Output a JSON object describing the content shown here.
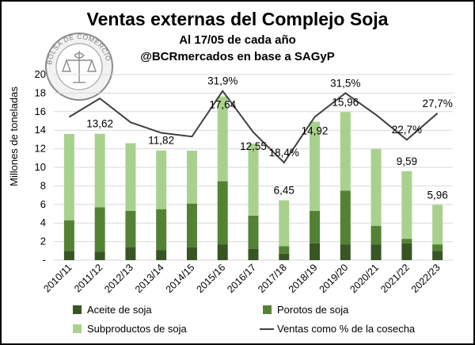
{
  "chart_data": {
    "type": "bar",
    "stacked": true,
    "title": "Ventas externas del Complejo Soja",
    "subtitle1": "Al 17/05 de cada año",
    "subtitle2": "@BCRmercados en base a SAGyP",
    "ylabel": "Millones de toneladas",
    "ylim": [
      0,
      20
    ],
    "yticks": [
      "-",
      "2",
      "4",
      "6",
      "8",
      "10",
      "12",
      "14",
      "16",
      "18",
      "20"
    ],
    "categories": [
      "2010/11",
      "2011/12",
      "2012/13",
      "2013/14",
      "2014/15",
      "2015/16",
      "2016/17",
      "2017/18",
      "2018/19",
      "2019/20",
      "2020/21",
      "2021/22",
      "2022/23"
    ],
    "series": [
      {
        "name": "Aceite de soja",
        "color": "#375623",
        "values": [
          1.0,
          0.9,
          1.4,
          1.1,
          1.4,
          1.7,
          1.2,
          0.7,
          1.8,
          1.7,
          1.7,
          1.8,
          1.0
        ]
      },
      {
        "name": "Porotos de soja",
        "color": "#548235",
        "values": [
          3.3,
          4.8,
          3.9,
          4.4,
          4.7,
          6.8,
          3.6,
          0.8,
          3.5,
          5.8,
          2.0,
          0.5,
          0.7
        ]
      },
      {
        "name": "Subproductos de soja",
        "color": "#a9d18e",
        "values": [
          9.3,
          7.92,
          7.3,
          6.32,
          5.7,
          9.14,
          7.75,
          4.95,
          9.62,
          8.46,
          8.3,
          7.29,
          4.26
        ]
      }
    ],
    "line_series": {
      "name": "Ventas como % de la cosecha",
      "color": "#404040",
      "values": [
        27.0,
        30.5,
        26.0,
        24.0,
        23.3,
        31.9,
        24.1,
        18.4,
        27.0,
        31.5,
        27.4,
        22.7,
        27.7
      ]
    },
    "total_labels": [
      "",
      "13,62",
      "",
      "11,82",
      "",
      "17,64",
      "12,55",
      "6,45",
      "14,92",
      "15,96",
      "",
      "9,59",
      "5,96"
    ],
    "pct_labels": [
      "",
      "",
      "",
      "",
      "",
      "31,9%",
      "",
      "18,4%",
      "",
      "31,5%",
      "",
      "22,7%",
      "27,7%"
    ],
    "legend": [
      {
        "name": "Aceite de soja",
        "kind": "box",
        "color": "#375623"
      },
      {
        "name": "Porotos de soja",
        "kind": "box",
        "color": "#548235"
      },
      {
        "name": "Subproductos de soja",
        "kind": "box",
        "color": "#a9d18e"
      },
      {
        "name": "Ventas como % de la cosecha",
        "kind": "line",
        "color": "#404040"
      }
    ],
    "logo_text": "BOLSA DE COMERCIO DE ROSARIO"
  }
}
